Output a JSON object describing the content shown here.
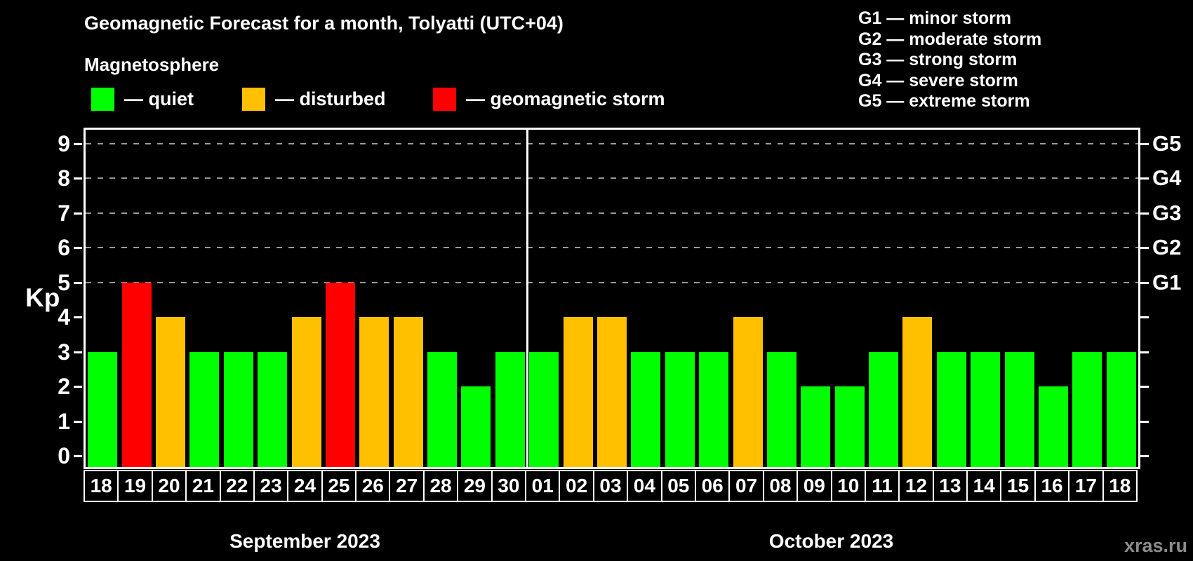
{
  "header": {
    "title": "Geomagnetic Forecast for a month, Tolyatti (UTC+04)",
    "subtitle": "Magnetosphere"
  },
  "legend": {
    "items": [
      {
        "name": "quiet",
        "label": "— quiet",
        "color": "#00ff00",
        "x": 130
      },
      {
        "name": "disturbed",
        "label": "— disturbed",
        "color": "#ffc000",
        "x": 345
      },
      {
        "name": "storm",
        "label": "— geomagnetic storm",
        "color": "#ff0000",
        "x": 617
      }
    ]
  },
  "g_scale_legend": {
    "items": [
      "G1 — minor storm",
      "G2 — moderate storm",
      "G3 — strong storm",
      "G4 — severe storm",
      "G5 — extreme storm"
    ]
  },
  "watermark": "xras.ru",
  "chart_data": {
    "type": "bar",
    "title": "Geomagnetic Forecast for a month, Tolyatti (UTC+04)",
    "xlabel": "",
    "ylabel": "Kp",
    "ylim": [
      0,
      9
    ],
    "y_ticks": [
      0,
      1,
      2,
      3,
      4,
      5,
      6,
      7,
      8,
      9
    ],
    "gridlines_at_kp": [
      5,
      6,
      7,
      8,
      9
    ],
    "grid": "dashed horizontal lines at storm thresholds G1–G5",
    "legend_position": "top-left",
    "right_axis_labels": [
      {
        "kp": 5,
        "label": "G1"
      },
      {
        "kp": 6,
        "label": "G2"
      },
      {
        "kp": 7,
        "label": "G3"
      },
      {
        "kp": 8,
        "label": "G4"
      },
      {
        "kp": 9,
        "label": "G5"
      }
    ],
    "status_colors": {
      "quiet": "#00ff00",
      "disturbed": "#ffc000",
      "storm": "#ff0000"
    },
    "sections": [
      {
        "label": "September 2023",
        "days": [
          {
            "date": "18",
            "kp": 3,
            "status": "quiet"
          },
          {
            "date": "19",
            "kp": 5,
            "status": "storm"
          },
          {
            "date": "20",
            "kp": 4,
            "status": "disturbed"
          },
          {
            "date": "21",
            "kp": 3,
            "status": "quiet"
          },
          {
            "date": "22",
            "kp": 3,
            "status": "quiet"
          },
          {
            "date": "23",
            "kp": 3,
            "status": "quiet"
          },
          {
            "date": "24",
            "kp": 4,
            "status": "disturbed"
          },
          {
            "date": "25",
            "kp": 5,
            "status": "storm"
          },
          {
            "date": "26",
            "kp": 4,
            "status": "disturbed"
          },
          {
            "date": "27",
            "kp": 4,
            "status": "disturbed"
          },
          {
            "date": "28",
            "kp": 3,
            "status": "quiet"
          },
          {
            "date": "29",
            "kp": 2,
            "status": "quiet"
          },
          {
            "date": "30",
            "kp": 3,
            "status": "quiet"
          }
        ]
      },
      {
        "label": "October 2023",
        "days": [
          {
            "date": "01",
            "kp": 3,
            "status": "quiet"
          },
          {
            "date": "02",
            "kp": 4,
            "status": "disturbed"
          },
          {
            "date": "03",
            "kp": 4,
            "status": "disturbed"
          },
          {
            "date": "04",
            "kp": 3,
            "status": "quiet"
          },
          {
            "date": "05",
            "kp": 3,
            "status": "quiet"
          },
          {
            "date": "06",
            "kp": 3,
            "status": "quiet"
          },
          {
            "date": "07",
            "kp": 4,
            "status": "disturbed"
          },
          {
            "date": "08",
            "kp": 3,
            "status": "quiet"
          },
          {
            "date": "09",
            "kp": 2,
            "status": "quiet"
          },
          {
            "date": "10",
            "kp": 2,
            "status": "quiet"
          },
          {
            "date": "11",
            "kp": 3,
            "status": "quiet"
          },
          {
            "date": "12",
            "kp": 4,
            "status": "disturbed"
          },
          {
            "date": "13",
            "kp": 3,
            "status": "quiet"
          },
          {
            "date": "14",
            "kp": 3,
            "status": "quiet"
          },
          {
            "date": "15",
            "kp": 3,
            "status": "quiet"
          },
          {
            "date": "16",
            "kp": 2,
            "status": "quiet"
          },
          {
            "date": "17",
            "kp": 3,
            "status": "quiet"
          },
          {
            "date": "18",
            "kp": 3,
            "status": "quiet"
          }
        ]
      }
    ]
  }
}
